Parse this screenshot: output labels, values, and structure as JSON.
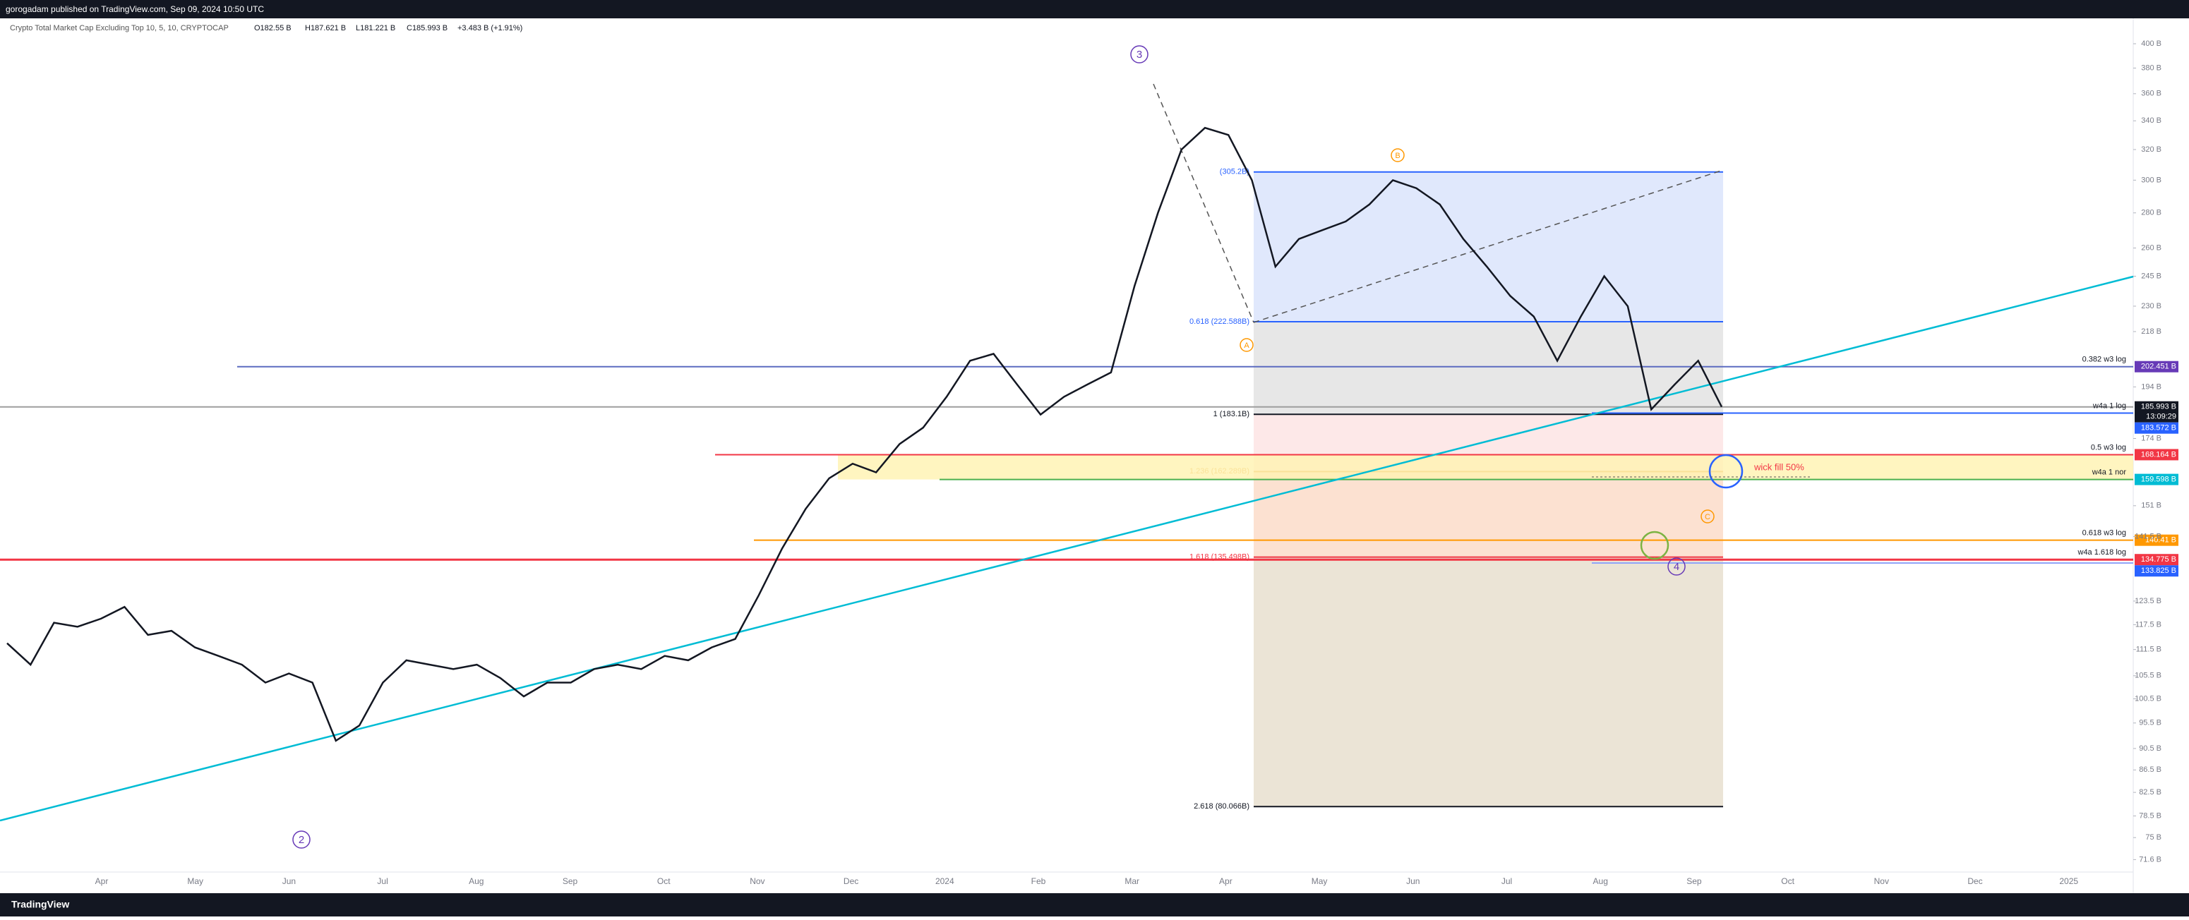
{
  "publisher_line": "gorogadam published on TradingView.com, Sep 09, 2024 10:50 UTC",
  "legend": "Crypto Total Market Cap Excluding Top 10, 5, 10, CRYPTOCAP",
  "ohlc_labels": [
    "O182.55 B",
    "H187.621 B",
    "L181.221 B",
    "C185.993 B",
    "+3.483 B (+1.91%)"
  ],
  "footer": "TradingView",
  "chart_data": {
    "type": "line",
    "log_scale": true,
    "color": "#131722",
    "ylim": [
      67.1,
      422
    ],
    "yticks": [
      {
        "value": 400,
        "label": "400 B"
      },
      {
        "value": 380,
        "label": "380 B"
      },
      {
        "value": 360,
        "label": "360 B"
      },
      {
        "value": 340,
        "label": "340 B"
      },
      {
        "value": 320,
        "label": "320 B"
      },
      {
        "value": 300,
        "label": "300 B"
      },
      {
        "value": 280,
        "label": "280 B"
      },
      {
        "value": 260,
        "label": "260 B"
      },
      {
        "value": 245,
        "label": "245 B"
      },
      {
        "value": 230,
        "label": "230 B"
      },
      {
        "value": 218,
        "label": "218 B"
      },
      {
        "value": 194,
        "label": "194 B"
      },
      {
        "value": 174,
        "label": "174 B"
      },
      {
        "value": 151,
        "label": "151 B"
      },
      {
        "value": 141.5,
        "label": "141.5 B"
      },
      {
        "value": 123.5,
        "label": "123.5 B"
      },
      {
        "value": 117.5,
        "label": "117.5 B"
      },
      {
        "value": 111.5,
        "label": "111.5 B"
      },
      {
        "value": 105.5,
        "label": "105.5 B"
      },
      {
        "value": 100.5,
        "label": "100.5 B"
      },
      {
        "value": 95.5,
        "label": "95.5 B"
      },
      {
        "value": 90.5,
        "label": "90.5 B"
      },
      {
        "value": 86.5,
        "label": "86.5 B"
      },
      {
        "value": 82.5,
        "label": "82.5 B"
      },
      {
        "value": 78.5,
        "label": "78.5 B"
      },
      {
        "value": 75,
        "label": "75 B"
      },
      {
        "value": 71.6,
        "label": "71.6 B"
      }
    ],
    "time_labels": [
      "Apr",
      "May",
      "Jun",
      "Jul",
      "Aug",
      "Sep",
      "Oct",
      "Nov",
      "Dec",
      "2024",
      "Feb",
      "Mar",
      "Apr",
      "May",
      "Jun",
      "Jul",
      "Aug",
      "Sep",
      "Oct",
      "Nov",
      "Dec",
      "2025"
    ],
    "values": [
      113,
      108,
      118,
      117,
      119,
      122,
      115,
      116,
      112,
      110,
      108,
      104,
      106,
      104,
      92,
      95,
      104,
      109,
      108,
      107,
      108,
      105,
      101,
      104,
      104,
      107,
      108,
      107,
      110,
      109,
      112,
      114,
      125,
      138,
      150,
      160,
      165,
      162,
      172,
      178,
      190,
      205,
      208,
      195,
      183,
      190,
      195,
      200,
      240,
      280,
      320,
      335,
      330,
      300,
      250,
      265,
      270,
      275,
      285,
      300,
      295,
      285,
      265,
      250,
      235,
      225,
      205,
      225,
      245,
      230,
      185,
      195,
      205,
      185.993
    ],
    "countdown": "13:09:29",
    "levels": [
      {
        "value": 202.451,
        "label": "202.451 B",
        "color": "#673ab7",
        "name": "0.382 w3 log"
      },
      {
        "value": 185.993,
        "label": "185.993 B",
        "color": "#131722"
      },
      {
        "value": 183.572,
        "label": "183.572 B",
        "color": "#2962ff",
        "name": "w4a 1 log"
      },
      {
        "value": 168.164,
        "label": "168.164 B",
        "color": "#f23645",
        "name": "0.5 w3 log"
      },
      {
        "value": 159.598,
        "label": "159.598 B",
        "color": "#00bcd4",
        "name": "w4a 1 nor"
      },
      {
        "value": 140.41,
        "label": "140.41 B",
        "color": "#ff9800",
        "name": "0.618 w3 log"
      },
      {
        "value": 134.775,
        "label": "134.775 B",
        "color": "#f23645",
        "name": "w4a 1.618 log"
      },
      {
        "value": 133.825,
        "label": "133.825 B",
        "color": "#2962ff"
      }
    ],
    "fib": [
      {
        "value": 305.2,
        "label": "(305.2B)",
        "color": "#2962ff"
      },
      {
        "value": 222.588,
        "label": "0.618 (222.588B)",
        "color": "#2962ff"
      },
      {
        "value": 183.1,
        "label": "1 (183.1B)",
        "color": "#131722"
      },
      {
        "value": 162.289,
        "label": "1.236 (162.289B)",
        "color": "#e6a23c"
      },
      {
        "value": 135.498,
        "label": "1.618 (135.498B)",
        "color": "#f23645"
      },
      {
        "value": 80.066,
        "label": "2.618 (80.066B)",
        "color": "#131722"
      }
    ],
    "wave_labels": [
      "3",
      "B",
      "A",
      "C",
      "4",
      "2"
    ],
    "annotation": "wick fill 50%"
  }
}
